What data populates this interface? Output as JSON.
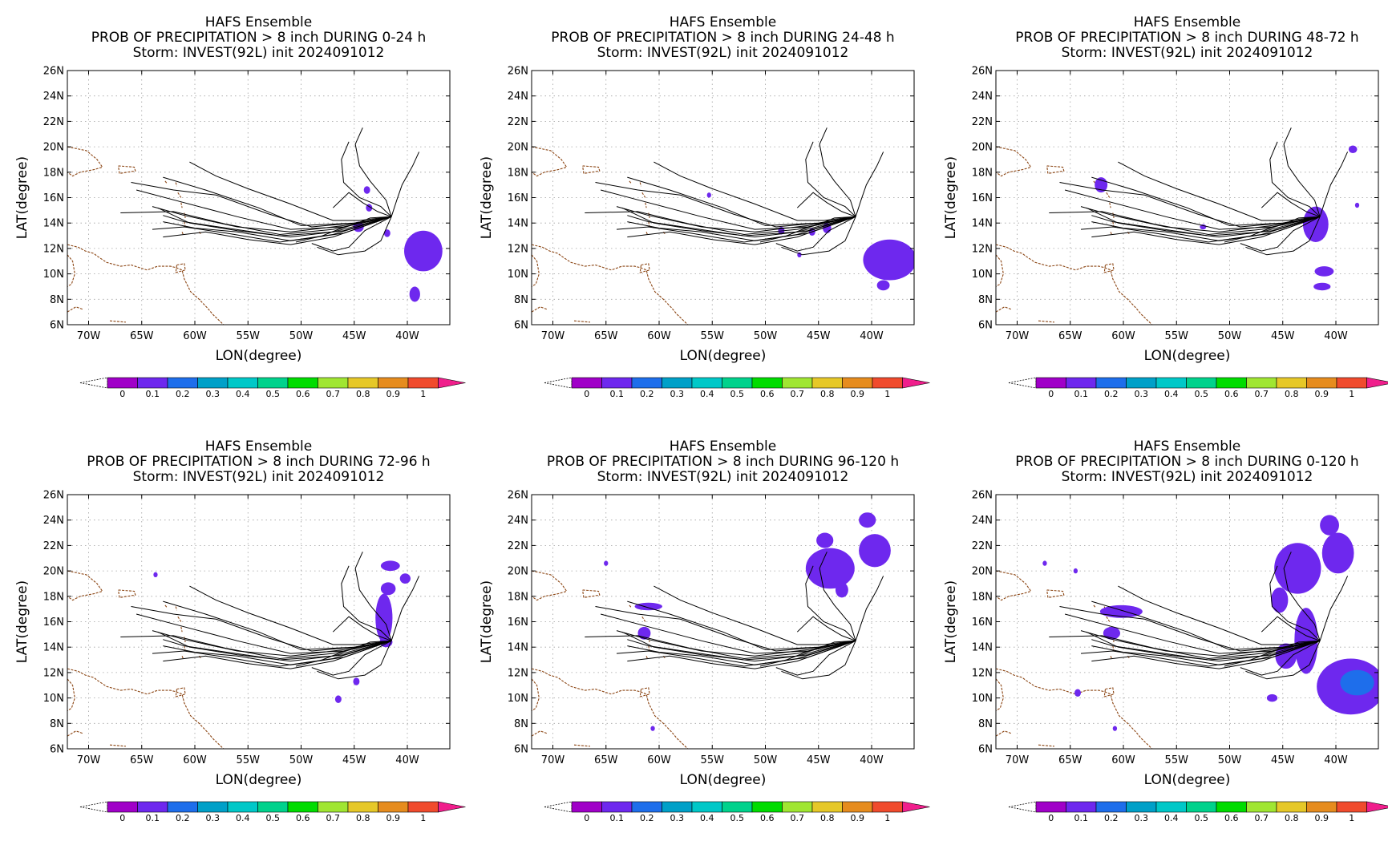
{
  "chart_data": [
    {
      "type": "map",
      "title": "HAFS Ensemble",
      "subtitle": "PROB OF PRECIPITATION > 8 inch DURING  0-24 h",
      "subtitle2": "Storm: INVEST(92L) init 2024091012",
      "xlabel": "LON(degree)",
      "ylabel": "LAT(degree)",
      "xlim": [
        -72,
        -36
      ],
      "ylim": [
        6,
        26
      ],
      "grid": true,
      "precip_regions": [
        {
          "lon": -38.5,
          "lat": 11.8,
          "rlon": 1.8,
          "rlat": 1.6,
          "prob": 0.1
        },
        {
          "lon": -39.3,
          "lat": 8.4,
          "rlon": 0.5,
          "rlat": 0.6,
          "prob": 0.1
        },
        {
          "lon": -44.6,
          "lat": 13.7,
          "rlon": 0.5,
          "rlat": 0.4,
          "prob": 0.1
        },
        {
          "lon": -43.8,
          "lat": 16.6,
          "rlon": 0.3,
          "rlat": 0.3,
          "prob": 0.1
        },
        {
          "lon": -43.6,
          "lat": 15.2,
          "rlon": 0.3,
          "rlat": 0.3,
          "prob": 0.1
        },
        {
          "lon": -41.9,
          "lat": 13.2,
          "rlon": 0.3,
          "rlat": 0.3,
          "prob": 0.1
        }
      ]
    },
    {
      "type": "map",
      "title": "HAFS Ensemble",
      "subtitle": "PROB OF PRECIPITATION > 8 inch DURING 24-48 h",
      "subtitle2": "Storm: INVEST(92L) init 2024091012",
      "xlabel": "LON(degree)",
      "ylabel": "LAT(degree)",
      "xlim": [
        -72,
        -36
      ],
      "ylim": [
        6,
        26
      ],
      "grid": true,
      "precip_regions": [
        {
          "lon": -38.3,
          "lat": 11.1,
          "rlon": 2.5,
          "rlat": 1.6,
          "prob": 0.1
        },
        {
          "lon": -38.9,
          "lat": 9.1,
          "rlon": 0.6,
          "rlat": 0.4,
          "prob": 0.1
        },
        {
          "lon": -44.2,
          "lat": 13.6,
          "rlon": 0.4,
          "rlat": 0.4,
          "prob": 0.1
        },
        {
          "lon": -45.6,
          "lat": 13.3,
          "rlon": 0.3,
          "rlat": 0.3,
          "prob": 0.1
        },
        {
          "lon": -48.5,
          "lat": 13.4,
          "rlon": 0.3,
          "rlat": 0.3,
          "prob": 0.1
        },
        {
          "lon": -55.3,
          "lat": 16.2,
          "rlon": 0.2,
          "rlat": 0.2,
          "prob": 0.1
        },
        {
          "lon": -46.8,
          "lat": 11.5,
          "rlon": 0.2,
          "rlat": 0.2,
          "prob": 0.1
        }
      ]
    },
    {
      "type": "map",
      "title": "HAFS Ensemble",
      "subtitle": "PROB OF PRECIPITATION > 8 inch DURING 48-72 h",
      "subtitle2": "Storm: INVEST(92L) init 2024091012",
      "xlabel": "LON(degree)",
      "ylabel": "LAT(degree)",
      "xlim": [
        -72,
        -36
      ],
      "ylim": [
        6,
        26
      ],
      "grid": true,
      "precip_regions": [
        {
          "lon": -41.9,
          "lat": 13.9,
          "rlon": 1.2,
          "rlat": 1.4,
          "prob": 0.1
        },
        {
          "lon": -41.1,
          "lat": 10.2,
          "rlon": 0.9,
          "rlat": 0.4,
          "prob": 0.1
        },
        {
          "lon": -41.3,
          "lat": 9.0,
          "rlon": 0.8,
          "rlat": 0.3,
          "prob": 0.1
        },
        {
          "lon": -38.4,
          "lat": 19.8,
          "rlon": 0.4,
          "rlat": 0.3,
          "prob": 0.1
        },
        {
          "lon": -62.1,
          "lat": 17.0,
          "rlon": 0.6,
          "rlat": 0.6,
          "prob": 0.1
        },
        {
          "lon": -38.0,
          "lat": 15.4,
          "rlon": 0.2,
          "rlat": 0.2,
          "prob": 0.1
        },
        {
          "lon": -52.5,
          "lat": 13.7,
          "rlon": 0.3,
          "rlat": 0.2,
          "prob": 0.1
        }
      ]
    },
    {
      "type": "map",
      "title": "HAFS Ensemble",
      "subtitle": "PROB OF PRECIPITATION > 8 inch DURING 72-96 h",
      "subtitle2": "Storm: INVEST(92L) init 2024091012",
      "xlabel": "LON(degree)",
      "ylabel": "LAT(degree)",
      "xlim": [
        -72,
        -36
      ],
      "ylim": [
        6,
        26
      ],
      "grid": true,
      "precip_regions": [
        {
          "lon": -42.2,
          "lat": 16.3,
          "rlon": 0.8,
          "rlat": 1.9,
          "prob": 0.1
        },
        {
          "lon": -41.6,
          "lat": 20.4,
          "rlon": 0.9,
          "rlat": 0.4,
          "prob": 0.1
        },
        {
          "lon": -41.8,
          "lat": 18.6,
          "rlon": 0.7,
          "rlat": 0.5,
          "prob": 0.1
        },
        {
          "lon": -40.2,
          "lat": 19.4,
          "rlon": 0.5,
          "rlat": 0.4,
          "prob": 0.1
        },
        {
          "lon": -42.0,
          "lat": 14.4,
          "rlon": 0.6,
          "rlat": 0.4,
          "prob": 0.1
        },
        {
          "lon": -44.8,
          "lat": 11.3,
          "rlon": 0.3,
          "rlat": 0.3,
          "prob": 0.1
        },
        {
          "lon": -46.5,
          "lat": 9.9,
          "rlon": 0.3,
          "rlat": 0.3,
          "prob": 0.1
        },
        {
          "lon": -63.7,
          "lat": 19.7,
          "rlon": 0.2,
          "rlat": 0.2,
          "prob": 0.1
        }
      ]
    },
    {
      "type": "map",
      "title": "HAFS Ensemble",
      "subtitle": "PROB OF PRECIPITATION > 8 inch DURING 96-120 h",
      "subtitle2": "Storm: INVEST(92L) init 2024091012",
      "xlabel": "LON(degree)",
      "ylabel": "LAT(degree)",
      "xlim": [
        -72,
        -36
      ],
      "ylim": [
        6,
        26
      ],
      "grid": true,
      "precip_regions": [
        {
          "lon": -43.9,
          "lat": 20.2,
          "rlon": 2.3,
          "rlat": 1.6,
          "prob": 0.1
        },
        {
          "lon": -39.7,
          "lat": 21.6,
          "rlon": 1.5,
          "rlat": 1.3,
          "prob": 0.1
        },
        {
          "lon": -44.4,
          "lat": 22.4,
          "rlon": 0.8,
          "rlat": 0.6,
          "prob": 0.1
        },
        {
          "lon": -40.4,
          "lat": 24.0,
          "rlon": 0.8,
          "rlat": 0.6,
          "prob": 0.1
        },
        {
          "lon": -42.8,
          "lat": 18.5,
          "rlon": 0.6,
          "rlat": 0.6,
          "prob": 0.1
        },
        {
          "lon": -61.0,
          "lat": 17.2,
          "rlon": 1.3,
          "rlat": 0.3,
          "prob": 0.1
        },
        {
          "lon": -61.4,
          "lat": 15.1,
          "rlon": 0.6,
          "rlat": 0.5,
          "prob": 0.1
        },
        {
          "lon": -65.0,
          "lat": 20.6,
          "rlon": 0.2,
          "rlat": 0.2,
          "prob": 0.1
        },
        {
          "lon": -60.6,
          "lat": 7.6,
          "rlon": 0.2,
          "rlat": 0.2,
          "prob": 0.1
        }
      ]
    },
    {
      "type": "map",
      "title": "HAFS Ensemble",
      "subtitle": "PROB OF PRECIPITATION > 8 inch DURING 0-120 h",
      "subtitle2": "Storm: INVEST(92L) init 2024091012",
      "xlabel": "LON(degree)",
      "ylabel": "LAT(degree)",
      "xlim": [
        -72,
        -36
      ],
      "ylim": [
        6,
        26
      ],
      "grid": true,
      "precip_regions": [
        {
          "lon": -38.6,
          "lat": 10.9,
          "rlon": 3.2,
          "rlat": 2.2,
          "prob": 0.1
        },
        {
          "lon": -38.0,
          "lat": 11.2,
          "rlon": 1.6,
          "rlat": 1.0,
          "prob": 0.2
        },
        {
          "lon": -42.8,
          "lat": 14.5,
          "rlon": 1.1,
          "rlat": 2.6,
          "prob": 0.1
        },
        {
          "lon": -43.6,
          "lat": 20.2,
          "rlon": 2.2,
          "rlat": 2.0,
          "prob": 0.1
        },
        {
          "lon": -39.8,
          "lat": 21.4,
          "rlon": 1.5,
          "rlat": 1.6,
          "prob": 0.1
        },
        {
          "lon": -45.3,
          "lat": 17.7,
          "rlon": 0.8,
          "rlat": 1.0,
          "prob": 0.1
        },
        {
          "lon": -40.6,
          "lat": 23.6,
          "rlon": 0.9,
          "rlat": 0.8,
          "prob": 0.1
        },
        {
          "lon": -44.7,
          "lat": 13.3,
          "rlon": 1.0,
          "rlat": 1.0,
          "prob": 0.1
        },
        {
          "lon": -60.2,
          "lat": 16.8,
          "rlon": 2.0,
          "rlat": 0.5,
          "prob": 0.1
        },
        {
          "lon": -61.1,
          "lat": 15.1,
          "rlon": 0.8,
          "rlat": 0.5,
          "prob": 0.1
        },
        {
          "lon": -46.0,
          "lat": 10.0,
          "rlon": 0.5,
          "rlat": 0.3,
          "prob": 0.1
        },
        {
          "lon": -64.3,
          "lat": 10.4,
          "rlon": 0.3,
          "rlat": 0.3,
          "prob": 0.1
        },
        {
          "lon": -67.4,
          "lat": 20.6,
          "rlon": 0.2,
          "rlat": 0.2,
          "prob": 0.1
        },
        {
          "lon": -64.5,
          "lat": 20.0,
          "rlon": 0.2,
          "rlat": 0.2,
          "prob": 0.1
        },
        {
          "lon": -60.8,
          "lat": 7.6,
          "rlon": 0.2,
          "rlat": 0.2,
          "prob": 0.1
        }
      ]
    }
  ],
  "axes": {
    "lon_ticks": [
      -70,
      -65,
      -60,
      -55,
      -50,
      -45,
      -40
    ],
    "lon_tick_labels": [
      "70W",
      "65W",
      "60W",
      "55W",
      "50W",
      "45W",
      "40W"
    ],
    "lat_ticks": [
      6,
      8,
      10,
      12,
      14,
      16,
      18,
      20,
      22,
      24,
      26
    ],
    "lat_tick_labels": [
      "6N",
      "8N",
      "10N",
      "12N",
      "14N",
      "16N",
      "18N",
      "20N",
      "22N",
      "24N",
      "26N"
    ]
  },
  "colorbar": {
    "ticks": [
      "0",
      "0.1",
      "0.2",
      "0.3",
      "0.4",
      "0.5",
      "0.6",
      "0.7",
      "0.8",
      "0.9",
      "1"
    ],
    "colors": [
      "#a000c8",
      "#6e28ee",
      "#1e6eeb",
      "#00a0c8",
      "#00c8c8",
      "#00d28c",
      "#00dc00",
      "#a0e632",
      "#e6c828",
      "#e68c1e",
      "#f04b2d"
    ],
    "over_color": "#f01e8c",
    "under_color": "#ffffff"
  },
  "colors": {
    "track": "#000000",
    "coast": "#8b4513",
    "grid": "#a0a0a0"
  },
  "storm_tracks": [
    [
      [
        -41.5,
        14.5
      ],
      [
        -47.0,
        13.3
      ],
      [
        -52.0,
        13.0
      ],
      [
        -57.0,
        13.6
      ],
      [
        -61.0,
        14.1
      ],
      [
        -63.0,
        14.6
      ]
    ],
    [
      [
        -41.5,
        14.5
      ],
      [
        -46.0,
        13.8
      ],
      [
        -51.0,
        13.3
      ],
      [
        -56.0,
        13.7
      ],
      [
        -61.0,
        14.6
      ],
      [
        -64.0,
        15.3
      ]
    ],
    [
      [
        -41.5,
        14.5
      ],
      [
        -47.0,
        13.5
      ],
      [
        -52.0,
        13.1
      ],
      [
        -57.0,
        13.9
      ],
      [
        -62.0,
        14.9
      ],
      [
        -67.0,
        14.8
      ]
    ],
    [
      [
        -41.5,
        14.5
      ],
      [
        -46.0,
        13.7
      ],
      [
        -51.0,
        13.5
      ],
      [
        -56.0,
        14.5
      ],
      [
        -61.0,
        15.6
      ],
      [
        -65.5,
        16.6
      ]
    ],
    [
      [
        -41.5,
        14.5
      ],
      [
        -45.0,
        14.0
      ],
      [
        -49.0,
        13.7
      ],
      [
        -53.0,
        14.7
      ],
      [
        -58.0,
        16.2
      ],
      [
        -62.0,
        16.6
      ],
      [
        -66.0,
        17.2
      ]
    ],
    [
      [
        -41.5,
        14.5
      ],
      [
        -45.0,
        14.0
      ],
      [
        -50.0,
        13.8
      ],
      [
        -54.0,
        15.2
      ],
      [
        -59.0,
        16.6
      ],
      [
        -63.0,
        17.6
      ]
    ],
    [
      [
        -41.5,
        14.5
      ],
      [
        -44.5,
        14.2
      ],
      [
        -47.0,
        14.2
      ],
      [
        -51.0,
        15.5
      ],
      [
        -55.0,
        16.7
      ],
      [
        -58.0,
        17.7
      ],
      [
        -60.5,
        18.8
      ]
    ],
    [
      [
        -41.5,
        14.5
      ],
      [
        -47.0,
        13.1
      ],
      [
        -52.0,
        12.5
      ],
      [
        -57.0,
        13.2
      ],
      [
        -61.0,
        13.7
      ],
      [
        -64.0,
        13.5
      ]
    ],
    [
      [
        -41.5,
        14.5
      ],
      [
        -46.0,
        13.2
      ],
      [
        -51.0,
        12.6
      ],
      [
        -56.0,
        13.3
      ],
      [
        -60.0,
        13.6
      ],
      [
        -63.0,
        14.1
      ]
    ],
    [
      [
        -41.5,
        14.5
      ],
      [
        -47.0,
        12.9
      ],
      [
        -51.0,
        12.3
      ],
      [
        -55.0,
        12.7
      ],
      [
        -59.0,
        13.3
      ],
      [
        -63.0,
        12.9
      ]
    ],
    [
      [
        -41.5,
        14.5
      ],
      [
        -46.0,
        13.4
      ],
      [
        -51.0,
        12.9
      ],
      [
        -56.0,
        13.4
      ],
      [
        -60.5,
        14.0
      ],
      [
        -63.5,
        15.2
      ]
    ],
    [
      [
        -41.5,
        14.5
      ],
      [
        -44.0,
        13.4
      ],
      [
        -45.5,
        12.1
      ],
      [
        -47.0,
        11.8
      ],
      [
        -49.0,
        12.4
      ]
    ],
    [
      [
        -41.5,
        14.5
      ],
      [
        -42.5,
        12.6
      ],
      [
        -44.0,
        11.8
      ],
      [
        -46.5,
        11.5
      ],
      [
        -48.5,
        12.1
      ]
    ],
    [
      [
        -41.5,
        14.5
      ],
      [
        -43.5,
        14.4
      ],
      [
        -45.0,
        13.9
      ],
      [
        -46.5,
        13.5
      ],
      [
        -48.0,
        13.0
      ],
      [
        -50.5,
        12.5
      ]
    ],
    [
      [
        -41.5,
        14.5
      ],
      [
        -42.0,
        15.8
      ],
      [
        -43.5,
        17.3
      ],
      [
        -44.5,
        18.5
      ],
      [
        -44.9,
        20.2
      ],
      [
        -44.2,
        21.5
      ]
    ],
    [
      [
        -41.5,
        14.5
      ],
      [
        -42.5,
        15.3
      ],
      [
        -44.5,
        16.0
      ],
      [
        -46.0,
        17.2
      ],
      [
        -46.2,
        19.0
      ],
      [
        -45.5,
        20.4
      ]
    ],
    [
      [
        -41.5,
        14.5
      ],
      [
        -41.0,
        15.8
      ],
      [
        -40.5,
        17.0
      ],
      [
        -39.5,
        18.5
      ],
      [
        -38.9,
        19.6
      ]
    ],
    [
      [
        -41.5,
        14.5
      ],
      [
        -42.8,
        14.9
      ],
      [
        -44.2,
        15.6
      ],
      [
        -45.5,
        16.4
      ],
      [
        -47.0,
        15.2
      ]
    ]
  ],
  "coastlines": [
    [
      [
        -72.0,
        20.0
      ],
      [
        -70.2,
        19.7
      ],
      [
        -69.2,
        19.0
      ],
      [
        -68.7,
        18.4
      ],
      [
        -69.5,
        18.2
      ],
      [
        -70.8,
        18.0
      ],
      [
        -71.5,
        17.7
      ],
      [
        -72.0,
        18.0
      ]
    ],
    [
      [
        -67.2,
        18.5
      ],
      [
        -65.7,
        18.4
      ],
      [
        -65.6,
        18.1
      ],
      [
        -67.1,
        17.9
      ],
      [
        -67.2,
        18.5
      ]
    ],
    [
      [
        -72.0,
        12.3
      ],
      [
        -71.0,
        12.1
      ],
      [
        -70.3,
        11.8
      ],
      [
        -69.5,
        11.6
      ],
      [
        -69.2,
        11.4
      ],
      [
        -68.3,
        10.9
      ],
      [
        -67.0,
        10.6
      ],
      [
        -66.0,
        10.7
      ],
      [
        -64.5,
        10.3
      ],
      [
        -63.5,
        10.6
      ],
      [
        -62.3,
        10.6
      ],
      [
        -61.8,
        10.5
      ],
      [
        -61.2,
        10.3
      ],
      [
        -61.0,
        9.6
      ],
      [
        -60.4,
        8.6
      ],
      [
        -59.6,
        8.0
      ],
      [
        -58.8,
        7.3
      ],
      [
        -58.3,
        6.8
      ],
      [
        -57.3,
        6.0
      ]
    ],
    [
      [
        -72.0,
        7.0
      ],
      [
        -71.2,
        7.4
      ],
      [
        -70.5,
        7.2
      ]
    ],
    [
      [
        -68.0,
        6.3
      ],
      [
        -66.5,
        6.2
      ]
    ],
    [
      [
        -72.0,
        11.5
      ],
      [
        -71.5,
        11.0
      ],
      [
        -71.3,
        10.0
      ],
      [
        -71.6,
        9.2
      ],
      [
        -72.0,
        9.0
      ]
    ],
    [
      [
        -61.7,
        10.7
      ],
      [
        -61.0,
        10.8
      ],
      [
        -60.9,
        10.3
      ],
      [
        -61.8,
        10.1
      ],
      [
        -61.7,
        10.7
      ]
    ],
    [
      [
        -61.3,
        15.6
      ],
      [
        -61.2,
        15.2
      ]
    ],
    [
      [
        -61.0,
        14.8
      ],
      [
        -60.9,
        14.4
      ]
    ],
    [
      [
        -61.0,
        14.1
      ],
      [
        -60.9,
        13.7
      ]
    ],
    [
      [
        -61.2,
        13.3
      ],
      [
        -61.1,
        13.1
      ]
    ],
    [
      [
        -61.8,
        17.2
      ],
      [
        -61.7,
        16.9
      ]
    ],
    [
      [
        -61.6,
        16.4
      ],
      [
        -61.3,
        16.0
      ]
    ],
    [
      [
        -62.8,
        17.3
      ],
      [
        -62.6,
        17.1
      ]
    ],
    [
      [
        -59.6,
        13.3
      ],
      [
        -59.4,
        13.1
      ]
    ]
  ]
}
